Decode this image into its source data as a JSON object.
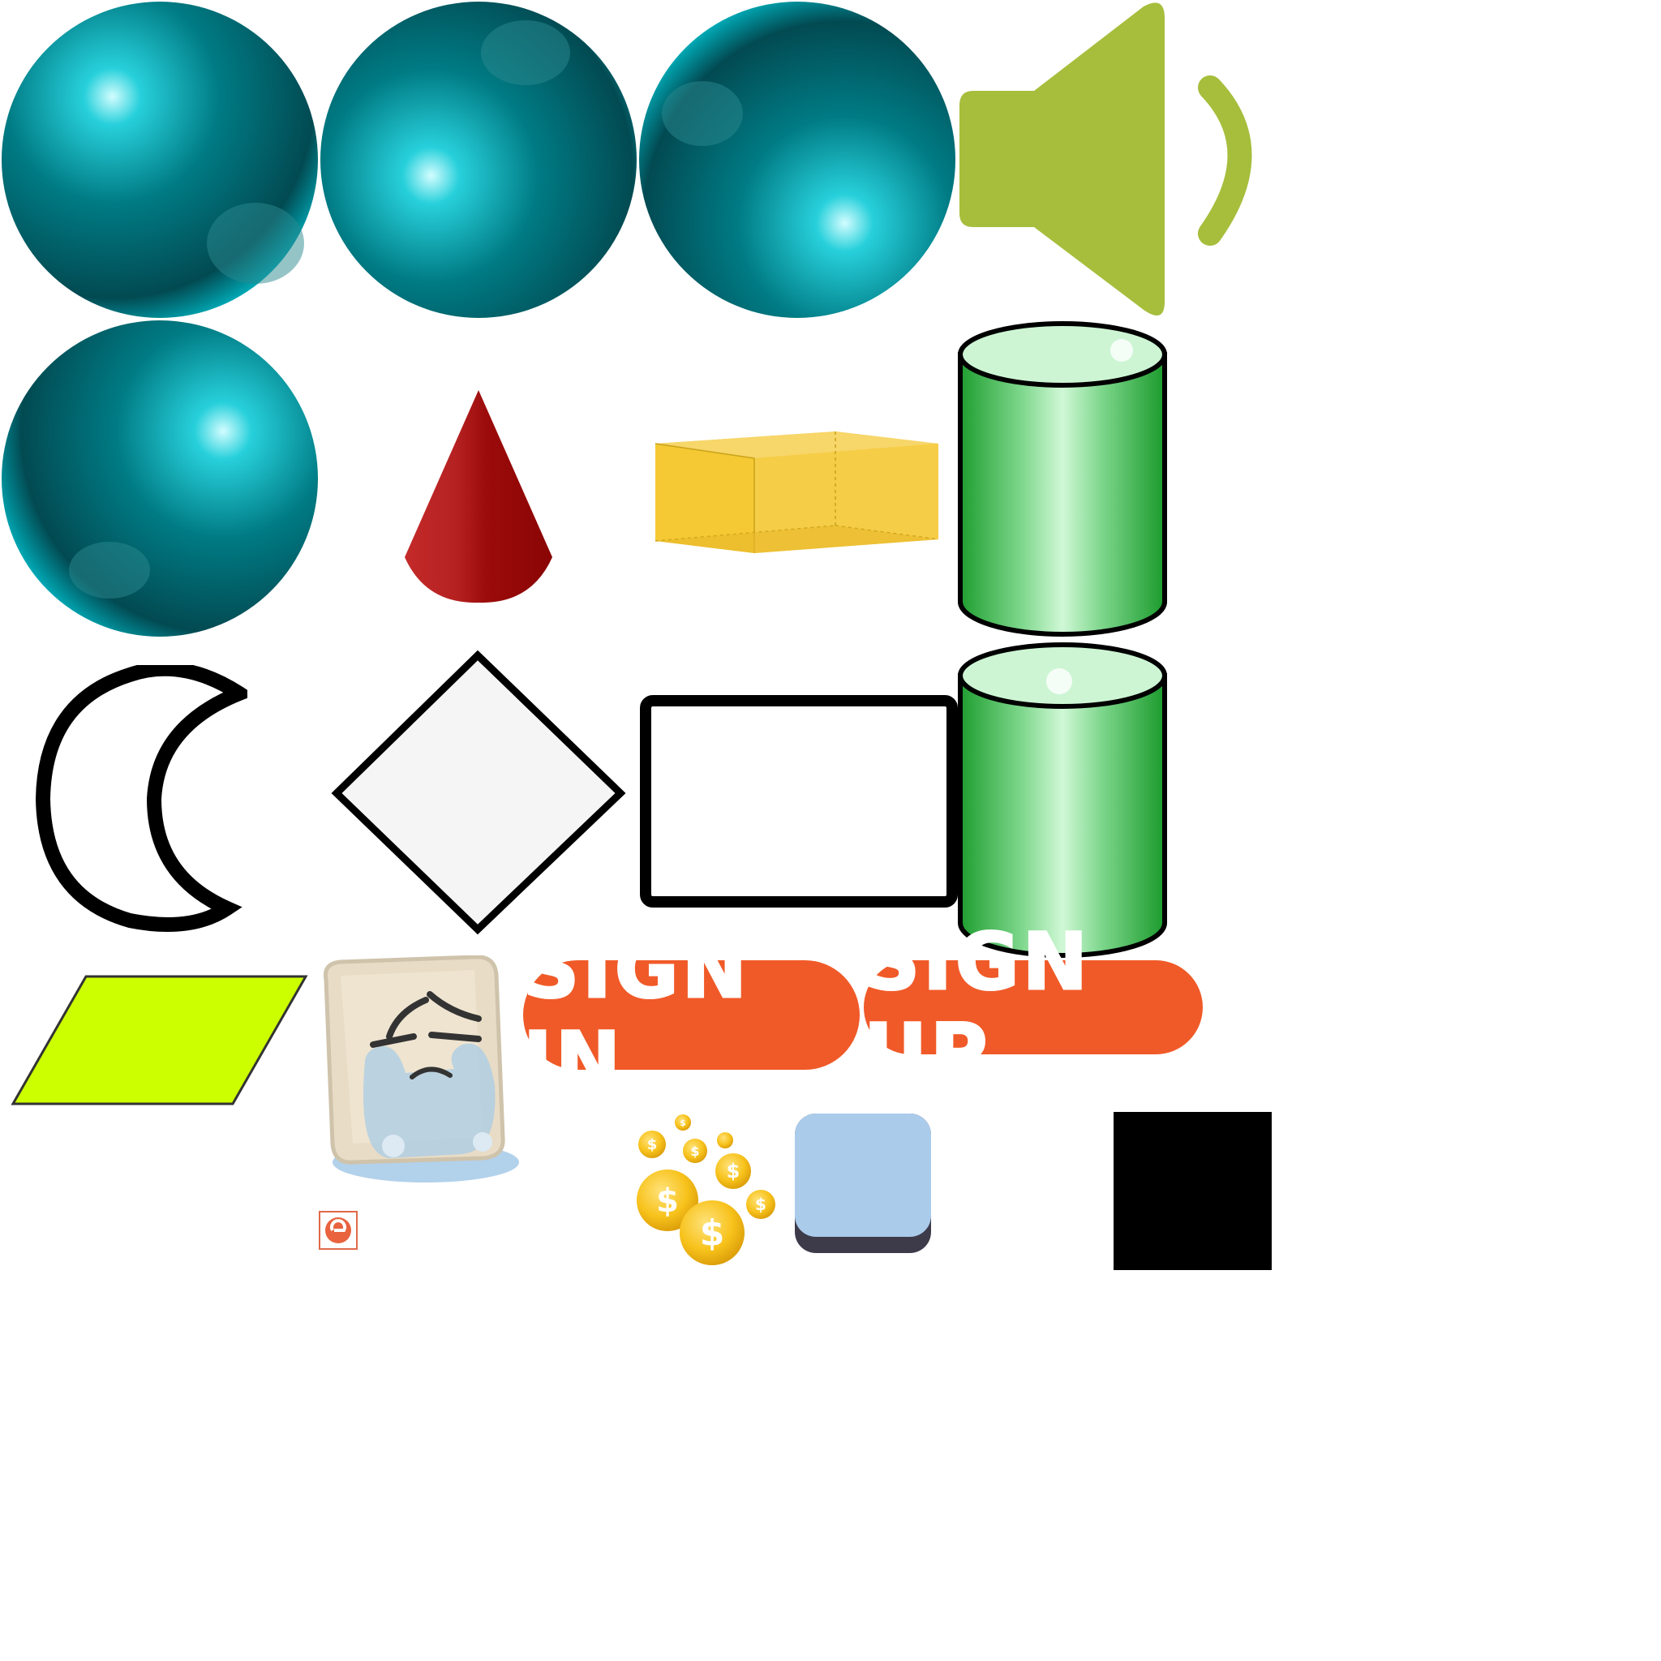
{
  "buttons": {
    "sign_in_label": "SIGN IN",
    "sign_up_label": "SIGN UP"
  },
  "icons": [
    "sphere-icon",
    "speaker-icon",
    "cone-icon",
    "box-icon",
    "cylinder-icon",
    "crescent-moon-icon",
    "diamond-icon",
    "rounded-rectangle-icon",
    "parallelogram-icon",
    "crying-face-icon",
    "coins-icon",
    "square-button-icon",
    "small-logo-icon",
    "black-square-icon"
  ],
  "colors": {
    "sphere": "#007d84",
    "sphere_highlight": "#c9fbff",
    "speaker": "#a6be3c",
    "cone": "#b01c1c",
    "box": "#f5c933",
    "cylinder": "#2aa83a",
    "cylinder_top": "#cdf5d4",
    "parallelogram": "#ccff00",
    "button": "#f05a28",
    "square_button": "#abcbeb",
    "square_button_shadow": "#3d3b4a",
    "coin": "#f7c21b",
    "black_square": "#000000"
  }
}
